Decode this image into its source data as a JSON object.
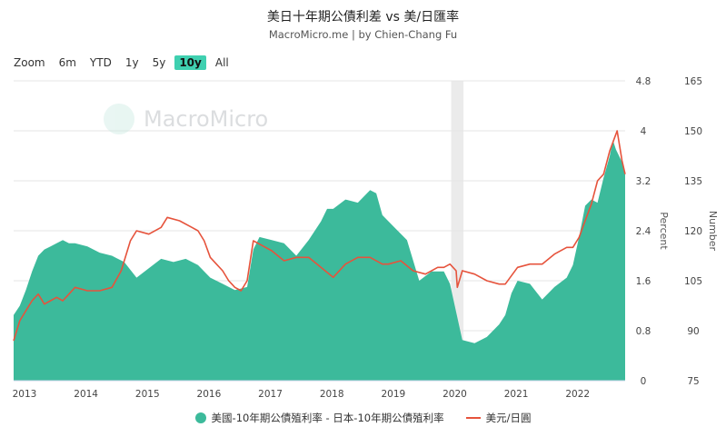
{
  "title": "美日十年期公債利差 vs 美/日匯率",
  "subtitle": "MacroMicro.me | by Chien-Chang Fu",
  "watermark": "MacroMicro",
  "zoom": {
    "label": "Zoom",
    "buttons": [
      "6m",
      "YTD",
      "1y",
      "5y",
      "10y",
      "All"
    ],
    "active": "10y"
  },
  "colors": {
    "spread": "#3cba9b",
    "fx": "#e6533c",
    "active": "#3fd0b0"
  },
  "legend": {
    "spread": "美國-10年期公債殖利率 - 日本-10年期公債殖利率",
    "fx": "美元/日圓"
  },
  "chart_data": {
    "type": "area+line",
    "title": "美日十年期公債利差 vs 美/日匯率",
    "x_range": [
      2013.0,
      2022.95
    ],
    "x_tick_labels": [
      "2013",
      "2014",
      "2015",
      "2016",
      "2017",
      "2018",
      "2019",
      "2020",
      "2021",
      "2022"
    ],
    "y_left": {
      "label": "Percent",
      "range": [
        0,
        4.8
      ],
      "ticks": [
        "0",
        "0.8",
        "1.6",
        "2.4",
        "3.2",
        "4",
        "4.8"
      ]
    },
    "y_right": {
      "label": "Number",
      "range": [
        75,
        165
      ],
      "ticks": [
        "75",
        "90",
        "105",
        "120",
        "135",
        "150",
        "165"
      ]
    },
    "shaded_period": [
      2020.12,
      2020.32
    ],
    "series": [
      {
        "name": "美國-10年期公債殖利率 - 日本-10年期公債殖利率",
        "type": "area",
        "axis": "left",
        "x": [
          2013.0,
          2013.1,
          2013.2,
          2013.3,
          2013.4,
          2013.5,
          2013.6,
          2013.7,
          2013.8,
          2013.9,
          2014.0,
          2014.2,
          2014.4,
          2014.6,
          2014.8,
          2015.0,
          2015.2,
          2015.4,
          2015.6,
          2015.8,
          2016.0,
          2016.2,
          2016.4,
          2016.6,
          2016.8,
          2016.9,
          2017.0,
          2017.2,
          2017.4,
          2017.6,
          2017.8,
          2018.0,
          2018.1,
          2018.2,
          2018.4,
          2018.6,
          2018.8,
          2018.9,
          2019.0,
          2019.2,
          2019.4,
          2019.6,
          2019.8,
          2020.0,
          2020.1,
          2020.2,
          2020.3,
          2020.5,
          2020.7,
          2020.9,
          2021.0,
          2021.1,
          2021.2,
          2021.4,
          2021.6,
          2021.8,
          2022.0,
          2022.1,
          2022.2,
          2022.3,
          2022.4,
          2022.5,
          2022.6,
          2022.7,
          2022.75,
          2022.8,
          2022.9,
          2022.95
        ],
        "values": [
          1.05,
          1.2,
          1.45,
          1.75,
          2.0,
          2.1,
          2.15,
          2.2,
          2.25,
          2.2,
          2.2,
          2.15,
          2.05,
          2.0,
          1.9,
          1.65,
          1.8,
          1.95,
          1.9,
          1.95,
          1.85,
          1.65,
          1.55,
          1.45,
          1.5,
          2.1,
          2.3,
          2.25,
          2.2,
          2.0,
          2.25,
          2.55,
          2.75,
          2.75,
          2.9,
          2.85,
          3.05,
          3.0,
          2.65,
          2.45,
          2.25,
          1.6,
          1.75,
          1.75,
          1.55,
          1.1,
          0.65,
          0.6,
          0.7,
          0.9,
          1.05,
          1.4,
          1.6,
          1.55,
          1.3,
          1.5,
          1.65,
          1.85,
          2.3,
          2.8,
          2.9,
          2.85,
          3.25,
          3.6,
          3.85,
          3.7,
          3.5,
          3.3
        ]
      },
      {
        "name": "美元/日圓",
        "type": "line",
        "axis": "right",
        "x": [
          2013.0,
          2013.1,
          2013.2,
          2013.3,
          2013.4,
          2013.5,
          2013.6,
          2013.7,
          2013.8,
          2013.9,
          2014.0,
          2014.2,
          2014.4,
          2014.6,
          2014.75,
          2014.9,
          2015.0,
          2015.2,
          2015.4,
          2015.5,
          2015.7,
          2015.9,
          2016.0,
          2016.1,
          2016.2,
          2016.3,
          2016.4,
          2016.5,
          2016.6,
          2016.7,
          2016.8,
          2016.9,
          2017.0,
          2017.2,
          2017.4,
          2017.6,
          2017.8,
          2018.0,
          2018.2,
          2018.4,
          2018.6,
          2018.8,
          2019.0,
          2019.1,
          2019.3,
          2019.5,
          2019.7,
          2019.9,
          2020.0,
          2020.1,
          2020.2,
          2020.22,
          2020.3,
          2020.5,
          2020.7,
          2020.9,
          2021.0,
          2021.2,
          2021.4,
          2021.6,
          2021.8,
          2022.0,
          2022.1,
          2022.2,
          2022.3,
          2022.4,
          2022.5,
          2022.6,
          2022.7,
          2022.78,
          2022.82,
          2022.9,
          2022.95
        ],
        "values": [
          87,
          93,
          96,
          99,
          101,
          98,
          99,
          100,
          99,
          101,
          103,
          102,
          102,
          103,
          108,
          117,
          120,
          119,
          121,
          124,
          123,
          121,
          120,
          117,
          112,
          110,
          108,
          105,
          103,
          102,
          105,
          117,
          116,
          114,
          111,
          112,
          112,
          109,
          106,
          110,
          112,
          112,
          110,
          110,
          111,
          108,
          107,
          109,
          109,
          110,
          108,
          103,
          108,
          107,
          105,
          104,
          104,
          109,
          110,
          110,
          113,
          115,
          115,
          118,
          123,
          128,
          135,
          137,
          144,
          148,
          150,
          141,
          137
        ]
      }
    ]
  }
}
